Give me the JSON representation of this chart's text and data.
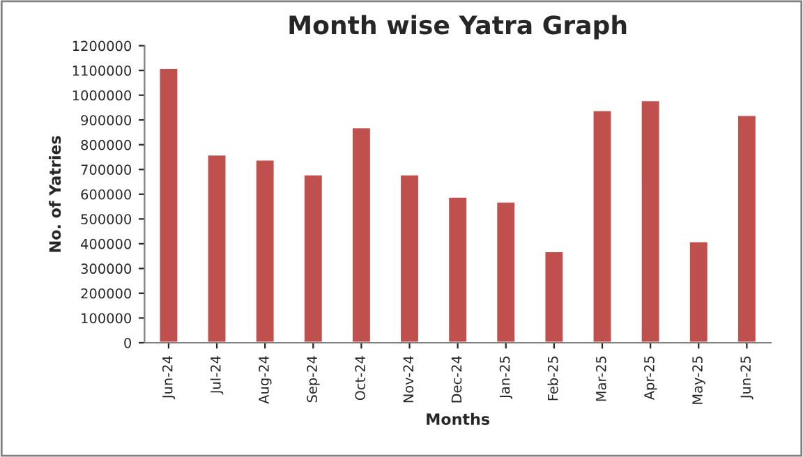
{
  "chart_data": {
    "type": "bar",
    "title": "Month wise Yatra Graph",
    "xlabel": "Months",
    "ylabel": "No. of Yatries",
    "categories": [
      "Jun-24",
      "Jul-24",
      "Aug-24",
      "Sep-24",
      "Oct-24",
      "Nov-24",
      "Dec-24",
      "Jan-25",
      "Feb-25",
      "Mar-25",
      "Apr-25",
      "May-25",
      "Jun-25"
    ],
    "values": [
      1110000,
      760000,
      740000,
      680000,
      870000,
      680000,
      590000,
      570000,
      370000,
      940000,
      980000,
      410000,
      920000
    ],
    "color": "#c0504d",
    "ylim": [
      0,
      1200000
    ],
    "yticks": [
      0,
      100000,
      200000,
      300000,
      400000,
      500000,
      600000,
      700000,
      800000,
      900000,
      1000000,
      1100000,
      1200000
    ],
    "grid": false,
    "legend": false
  }
}
